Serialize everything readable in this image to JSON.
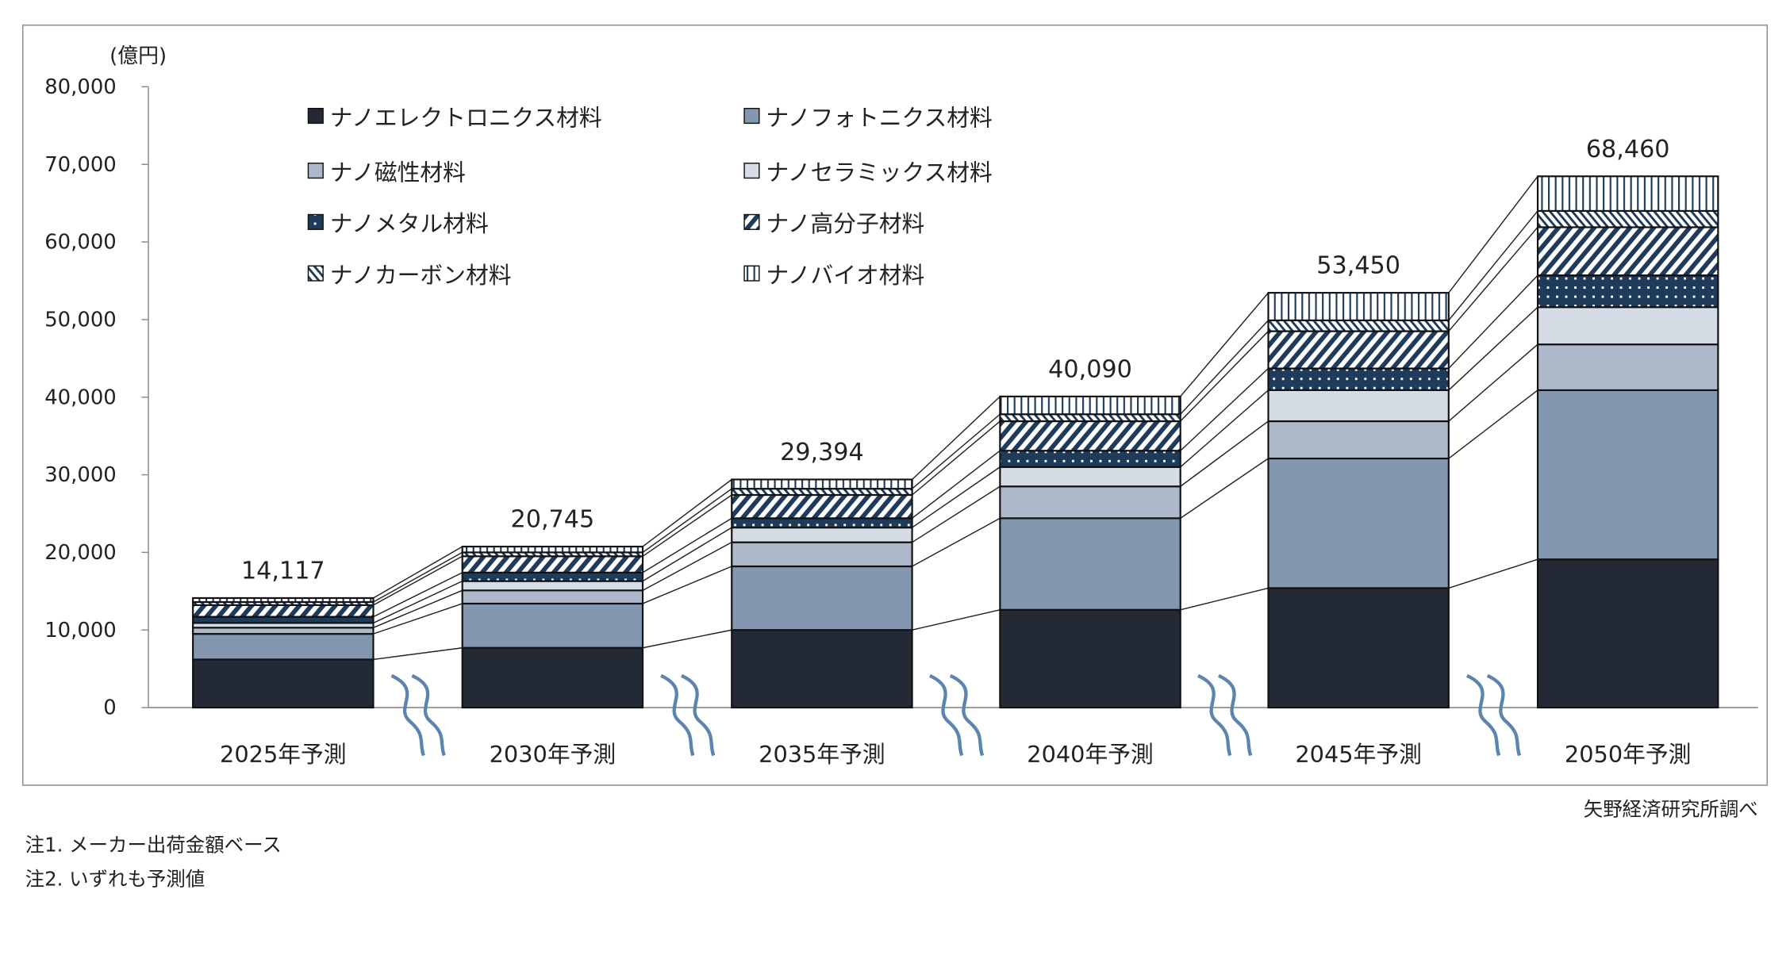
{
  "chart_data": {
    "type": "bar",
    "stacked": true,
    "unit_label": "(億円)",
    "ylim": [
      0,
      80000
    ],
    "yticks": [
      "0",
      "10,000",
      "20,000",
      "30,000",
      "40,000",
      "50,000",
      "60,000",
      "70,000",
      "80,000"
    ],
    "grid": false,
    "legend_placement": "top-left inside",
    "categories": [
      "2025年予測",
      "2030年予測",
      "2035年予測",
      "2040年予測",
      "2045年予測",
      "2050年予測"
    ],
    "totals": [
      14117,
      20745,
      29394,
      40090,
      53450,
      68460
    ],
    "total_labels": [
      "14,117",
      "20,745",
      "29,394",
      "40,090",
      "53,450",
      "68,460"
    ],
    "series": [
      {
        "name": "ナノエレクトロニクス材料",
        "values": [
          6200,
          7700,
          10000,
          12600,
          15400,
          19100
        ],
        "color": "#232a36",
        "pattern": "solid"
      },
      {
        "name": "ナノフォトニクス材料",
        "values": [
          3300,
          5700,
          8200,
          11800,
          16700,
          21800
        ],
        "color": "#8497b0",
        "pattern": "solid"
      },
      {
        "name": "ナノ磁性材料",
        "values": [
          800,
          1700,
          3100,
          4100,
          4800,
          5900
        ],
        "color": "#adb9ca",
        "pattern": "solid"
      },
      {
        "name": "ナノセラミックス材料",
        "values": [
          600,
          1200,
          1900,
          2500,
          4000,
          4800
        ],
        "color": "#d6dce5",
        "pattern": "solid"
      },
      {
        "name": "ナノメタル材料",
        "values": [
          800,
          1100,
          1200,
          2100,
          2800,
          4100
        ],
        "color": "#1f3b5c",
        "pattern": "dots"
      },
      {
        "name": "ナノ高分子材料",
        "values": [
          1500,
          2100,
          3000,
          3800,
          4800,
          6200
        ],
        "color": "#1f3b5c",
        "pattern": "diagonal-forward"
      },
      {
        "name": "ナノカーボン材料",
        "values": [
          400,
          500,
          800,
          900,
          1400,
          2100
        ],
        "color": "#1f3b5c",
        "pattern": "diagonal-back"
      },
      {
        "name": "ナノバイオ材料",
        "values": [
          517,
          745,
          1194,
          2290,
          3550,
          4460
        ],
        "color": "#1f3b5c",
        "pattern": "vertical-lines"
      }
    ],
    "source": "矢野経済研究所調べ",
    "notes": [
      "注1.  メーカー出荷金額ベース",
      "注2.  いずれも予測値"
    ]
  }
}
